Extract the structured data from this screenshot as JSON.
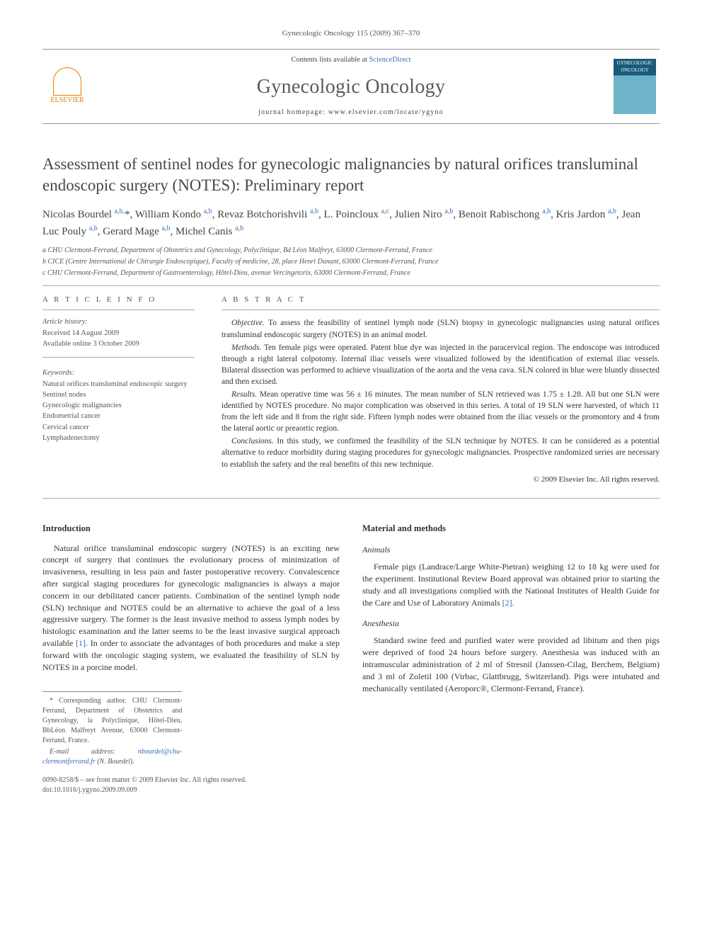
{
  "header": {
    "citation": "Gynecologic Oncology 115 (2009) 367–370",
    "contents_prefix": "Contents lists available at ",
    "contents_link": "ScienceDirect",
    "journal_name": "Gynecologic Oncology",
    "homepage_label": "journal homepage: ",
    "homepage_url": "www.elsevier.com/locate/ygyno",
    "publisher_logo": "ELSEVIER",
    "cover_text": "GYNECOLOGIC ONCOLOGY"
  },
  "article": {
    "title": "Assessment of sentinel nodes for gynecologic malignancies by natural orifices transluminal endoscopic surgery (NOTES): Preliminary report",
    "authors_html": "Nicolas Bourdel <sup>a,b,</sup><span class='star'>*</span>, William Kondo <sup>a,b</sup>, Revaz Botchorishvili <sup>a,b</sup>, L. Poincloux <sup>a,c</sup>, Julien Niro <sup>a,b</sup>, Benoit Rabischong <sup>a,b</sup>, Kris Jardon <sup>a,b</sup>, Jean Luc Pouly <sup>a,b</sup>, Gerard Mage <sup>a,b</sup>, Michel Canis <sup>a,b</sup>",
    "affiliations": [
      "a  CHU Clermont-Ferrand, Department of Obstetrics and Gynecology, Polyclinique, Bd Léon Malfreyt, 63000 Clermont-Ferrand, France",
      "b  CICE (Centre International de Chirurgie Endoscopique), Faculty of medicine, 28, place Henri Dunant, 63000 Clermont-Ferrand, France",
      "c  CHU Clermont-Ferrand, Department of Gastroenterology, Hôtel-Dieu, avenue Vercingetorix, 63000 Clermont-Ferrand, France"
    ]
  },
  "info": {
    "heading": "A R T I C L E   I N F O",
    "history_label": "Article history:",
    "received": "Received 14 August 2009",
    "online": "Available online 3 October 2009",
    "keywords_label": "Keywords:",
    "keywords": [
      "Natural orifices transluminal endoscopic surgery",
      "Sentinel nodes",
      "Gynecologic malignancies",
      "Endometrial cancer",
      "Cervical cancer",
      "Lymphadenectomy"
    ]
  },
  "abstract": {
    "heading": "A B S T R A C T",
    "objective_label": "Objective.",
    "objective": " To assess the feasibility of sentinel lymph node (SLN) biopsy in gynecologic malignancies using natural orifices transluminal endoscopic surgery (NOTES) in an animal model.",
    "methods_label": "Methods.",
    "methods": " Ten female pigs were operated. Patent blue dye was injected in the paracervical region. The endoscope was introduced through a right lateral colpotomy. Internal iliac vessels were visualized followed by the identification of external iliac vessels. Bilateral dissection was performed to achieve visualization of the aorta and the vena cava. SLN colored in blue were bluntly dissected and then excised.",
    "results_label": "Results.",
    "results": " Mean operative time was 56 ± 16 minutes. The mean number of SLN retrieved was 1.75 ± 1.28. All but one SLN were identified by NOTES procedure. No major complication was observed in this series. A total of 19 SLN were harvested, of which 11 from the left side and 8 from the right side. Fifteen lymph nodes were obtained from the iliac vessels or the promontory and 4 from the lateral aortic or preaortic region.",
    "conclusions_label": "Conclusions.",
    "conclusions": " In this study, we confirmed the feasibility of the SLN technique by NOTES. It can be considered as a potential alternative to reduce morbidity during staging procedures for gynecologic malignancies. Prospective randomized series are necessary to establish the safety and the real benefits of this new technique.",
    "copyright": "© 2009 Elsevier Inc. All rights reserved."
  },
  "body": {
    "intro_heading": "Introduction",
    "intro_p1": "Natural orifice transluminal endoscopic surgery (NOTES) is an exciting new concept of surgery that continues the evolutionary process of minimization of invasiveness, resulting in less pain and faster postoperative recovery. Convalescence after surgical staging procedures for gynecologic malignancies is always a major concern in our debilitated cancer patients. Combination of the sentinel lymph node (SLN) technique and NOTES could be an alternative to achieve the goal of a less aggressive surgery. The former is the least invasive method to assess lymph nodes by histologic examination and the latter seems to be the least invasive surgical approach available ",
    "intro_ref1": "[1]",
    "intro_p1b": ". In order to associate the advantages of both procedures and make a step forward with the oncologic staging system, we evaluated the feasibility of SLN by NOTES in a porcine model.",
    "mm_heading": "Material and methods",
    "animals_heading": "Animals",
    "animals_p": "Female pigs (Landrace/Large White-Pietran) weighing 12 to 18 kg were used for the experiment. Institutional Review Board approval was obtained prior to starting the study and all investigations complied with the National Institutes of Health Guide for the Care and Use of Laboratory Animals ",
    "animals_ref": "[2]",
    "animals_p_end": ".",
    "anesthesia_heading": "Anesthesia",
    "anesthesia_p": "Standard swine feed and purified water were provided ad libitum and then pigs were deprived of food 24 hours before surgery. Anesthesia was induced with an intramuscular administration of 2 ml of Stresnil (Janssen-Cilag, Berchem, Belgium) and 3 ml of Zoletil 100 (Virbac, Glattbrugg, Switzerland). Pigs were intubated and mechanically ventilated (Aeroporc®, Clermont-Ferrand, France)."
  },
  "footnotes": {
    "corr": "* Corresponding author. CHU Clermont-Ferrand, Department of Obstetrics and Gynecology, la Polyclinique, Hôtel-Dieu, BbLéon Malfreyt Avenue, 63000 Clermont-Ferrand, France.",
    "email_label": "E-mail address: ",
    "email": "nbourdel@chu-clermontferrand.fr",
    "email_suffix": " (N. Bourdel).",
    "front_matter": "0090-8258/$ – see front matter © 2009 Elsevier Inc. All rights reserved.",
    "doi": "doi:10.1016/j.ygyno.2009.09.009"
  },
  "colors": {
    "link": "#3a6fb7",
    "text": "#333333",
    "muted": "#555555",
    "rule": "#aaaaaa",
    "elsevier": "#e67e00",
    "cover_top": "#1a5a7a",
    "cover_bot": "#6fb3c9"
  }
}
